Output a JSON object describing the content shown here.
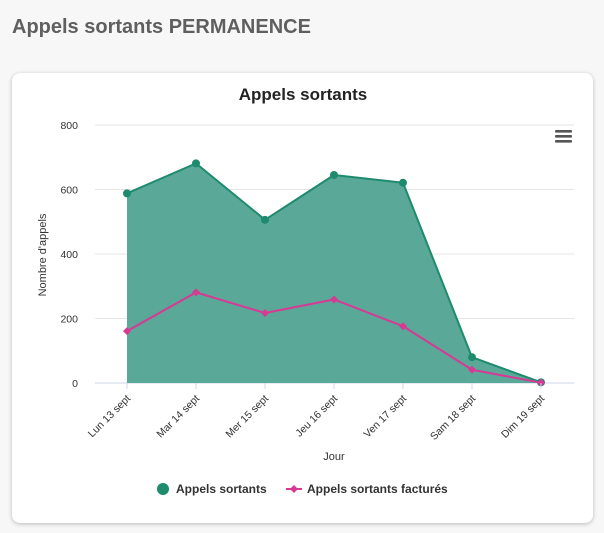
{
  "page": {
    "title": "Appels sortants PERMANENCE"
  },
  "chart_data": {
    "type": "area",
    "title": "Appels sortants",
    "xlabel": "Jour",
    "ylabel": "Nombre d'appels",
    "ylim": [
      0,
      800
    ],
    "yticks": [
      0,
      200,
      400,
      600,
      800
    ],
    "grid": true,
    "legend": "bottom",
    "categories": [
      "Lun 13 sept",
      "Mar 14 sept",
      "Mer 15 sept",
      "Jeu 16 sept",
      "Ven 17 sept",
      "Sam 18 sept",
      "Dim 19 sept"
    ],
    "series": [
      {
        "name": "Appels sortants",
        "type": "area",
        "color": "#1e8a6e",
        "fill": "#5aa897",
        "marker": "circle",
        "values": [
          588,
          681,
          506,
          645,
          621,
          80,
          2
        ]
      },
      {
        "name": "Appels sortants facturés",
        "type": "line",
        "color": "#d63a95",
        "marker": "diamond",
        "values": [
          161,
          281,
          217,
          259,
          176,
          41,
          1
        ]
      }
    ]
  },
  "icons": {
    "menu": "hamburger-menu-icon"
  }
}
